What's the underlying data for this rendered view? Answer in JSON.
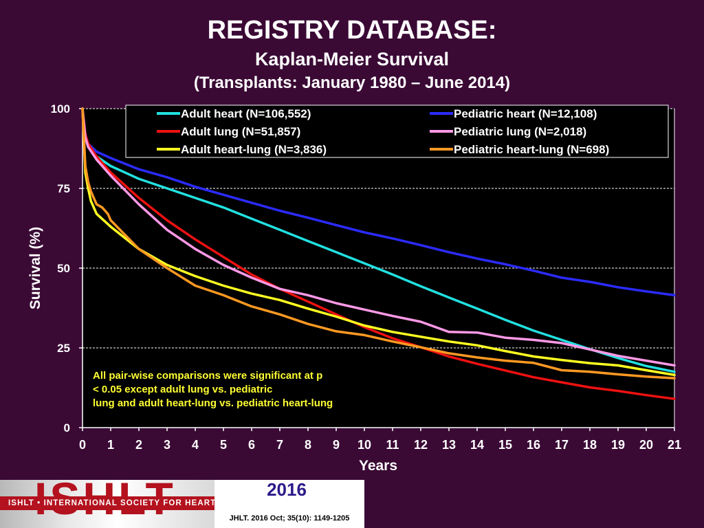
{
  "header": {
    "title": "REGISTRY DATABASE:",
    "subtitle": "Kaplan-Meier Survival",
    "subtitle2": "(Transplants: January 1980 – June 2014)"
  },
  "footer": {
    "logo": "ISHLT",
    "organization": "ISHLT • INTERNATIONAL SOCIETY FOR HEART AND LUNG TRANSPLANTATION",
    "year": "2016",
    "citation": "JHLT. 2016 Oct; 35(10): 1149-1205"
  },
  "chart_data": {
    "type": "line",
    "xlabel": "Years",
    "ylabel": "Survival (%)",
    "xlim": [
      0,
      21
    ],
    "ylim": [
      0,
      100
    ],
    "xticks": [
      0,
      1,
      2,
      3,
      4,
      5,
      6,
      7,
      8,
      9,
      10,
      11,
      12,
      13,
      14,
      15,
      16,
      17,
      18,
      19,
      20,
      21
    ],
    "yticks": [
      0,
      25,
      50,
      75,
      100
    ],
    "grid": "horizontal-dashed",
    "legend_position": "top",
    "annotation": "All pair-wise comparisons were significant at p < 0.05 except adult lung vs. pediatric lung and adult heart-lung vs. pediatric heart-lung",
    "series": [
      {
        "name": "Adult heart (N=106,552)",
        "color": "#22e0e0",
        "x": [
          0,
          0.1,
          0.2,
          0.5,
          1,
          2,
          3,
          4,
          5,
          6,
          7,
          8,
          9,
          10,
          11,
          12,
          13,
          14,
          15,
          16,
          17,
          18,
          19,
          20,
          21
        ],
        "y": [
          100,
          91,
          88,
          85,
          82,
          78,
          75,
          72,
          69,
          65.5,
          62,
          58.5,
          55,
          51.5,
          48,
          44.3,
          40.8,
          37.3,
          33.8,
          30.4,
          27.5,
          24.6,
          21.8,
          19.3,
          17.5
        ]
      },
      {
        "name": "Pediatric heart (N=12,108)",
        "color": "#2b2bff",
        "x": [
          0,
          0.1,
          0.2,
          0.5,
          1,
          2,
          3,
          4,
          5,
          6,
          7,
          8,
          9,
          10,
          11,
          12,
          13,
          14,
          15,
          16,
          17,
          18,
          19,
          20,
          21
        ],
        "y": [
          100,
          92,
          89,
          86.5,
          84.5,
          81,
          78.5,
          75.5,
          73,
          70.5,
          68,
          65.8,
          63.5,
          61.2,
          59.3,
          57.2,
          55,
          53,
          51.2,
          49.2,
          47,
          45.7,
          44,
          42.7,
          41.5
        ]
      },
      {
        "name": "Adult lung (N=51,857)",
        "color": "#ee1111",
        "x": [
          0,
          0.1,
          0.2,
          0.5,
          1,
          2,
          3,
          4,
          5,
          6,
          7,
          8,
          9,
          10,
          11,
          12,
          13,
          14,
          15,
          16,
          17,
          18,
          19,
          20,
          21
        ],
        "y": [
          100,
          92,
          89,
          85,
          80,
          72,
          65,
          59,
          53.5,
          48,
          43.5,
          39.5,
          35.5,
          31.5,
          28,
          25.2,
          22.3,
          20,
          17.9,
          15.8,
          14.2,
          12.6,
          11.5,
          10.2,
          9
        ]
      },
      {
        "name": "Pediatric lung (N=2,018)",
        "color": "#ff99e6",
        "x": [
          0,
          0.1,
          0.2,
          0.5,
          1,
          2,
          3,
          4,
          5,
          6,
          7,
          8,
          9,
          10,
          11,
          12,
          13,
          14,
          15,
          16,
          17,
          18,
          19,
          20,
          21
        ],
        "y": [
          100,
          91,
          88,
          84,
          79,
          70,
          62,
          56,
          51,
          47,
          43.5,
          41.5,
          39,
          37,
          35,
          33.2,
          30,
          29.8,
          28.2,
          27.5,
          26.5,
          24.5,
          22.5,
          21,
          19.5
        ]
      },
      {
        "name": "Adult heart-lung (N=3,836)",
        "color": "#ffff22",
        "x": [
          0,
          0.1,
          0.2,
          0.3,
          0.5,
          1,
          2,
          3,
          4,
          5,
          6,
          7,
          8,
          9,
          10,
          11,
          12,
          13,
          14,
          15,
          16,
          17,
          18,
          19,
          20,
          21
        ],
        "y": [
          100,
          80,
          75,
          71,
          67,
          63,
          56,
          51,
          47.5,
          44.5,
          42,
          40,
          37.3,
          34.8,
          32,
          30,
          28.5,
          27,
          25.8,
          24,
          22.3,
          21.2,
          20.2,
          19.5,
          18,
          16.5
        ]
      },
      {
        "name": "Pediatric heart-lung (N=698)",
        "color": "#ff9922",
        "x": [
          0,
          0.1,
          0.2,
          0.3,
          0.5,
          0.7,
          0.9,
          1,
          2,
          3,
          4,
          5,
          6,
          7,
          8,
          9,
          10,
          11,
          12,
          13,
          14,
          15,
          16,
          17,
          18,
          19,
          20,
          21
        ],
        "y": [
          100,
          82,
          77,
          74,
          70,
          69,
          67,
          65,
          56,
          50,
          44.5,
          41.5,
          38,
          35.5,
          32.5,
          30.2,
          29,
          27,
          25.2,
          23.3,
          22,
          21,
          20.3,
          18,
          17.5,
          16.7,
          16,
          15.5
        ]
      }
    ]
  }
}
